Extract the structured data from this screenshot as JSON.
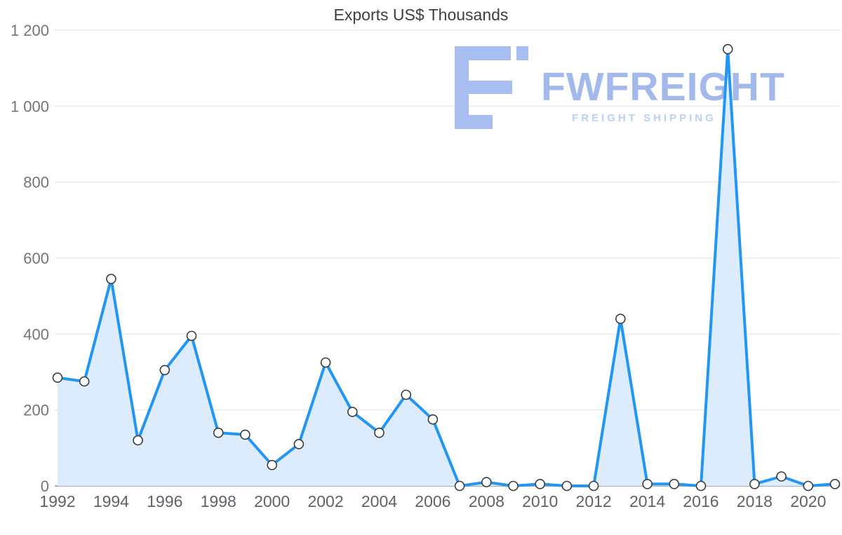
{
  "chart_data": {
    "type": "area",
    "title": "Exports US$ Thousands",
    "xlabel": "",
    "ylabel": "",
    "x": [
      1992,
      1993,
      1994,
      1995,
      1996,
      1997,
      1998,
      1999,
      2000,
      2001,
      2002,
      2003,
      2004,
      2005,
      2006,
      2007,
      2008,
      2009,
      2010,
      2011,
      2012,
      2013,
      2014,
      2015,
      2016,
      2017,
      2018,
      2019,
      2020,
      2021
    ],
    "values": [
      285,
      275,
      545,
      120,
      305,
      395,
      140,
      135,
      55,
      110,
      325,
      195,
      140,
      240,
      175,
      0,
      10,
      0,
      5,
      0,
      0,
      440,
      5,
      5,
      0,
      1150,
      5,
      25,
      0,
      5
    ],
    "series_name": "Exports US$ Thousands",
    "ylim": [
      0,
      1200
    ],
    "grid": true,
    "legend": false,
    "x_tick_step": 2,
    "y_ticks": [
      {
        "value": 0,
        "label": "0"
      },
      {
        "value": 200,
        "label": "200"
      },
      {
        "value": 400,
        "label": "400"
      },
      {
        "value": 600,
        "label": "600"
      },
      {
        "value": 800,
        "label": "800"
      },
      {
        "value": 1000,
        "label": "1 000"
      },
      {
        "value": 1200,
        "label": "1 200"
      }
    ],
    "line_color": "#2196f3",
    "area_color": "#dcecfd",
    "marker_fill": "#ffffff",
    "marker_stroke": "#3b3b3b",
    "grid_color": "#e2e2e2",
    "axis_line_color": "#a8a8a8",
    "tick_label_color": "#757575",
    "x_tick_label_color": "#5f6368",
    "title_color": "#3c4043"
  },
  "watermark": {
    "brand": "FWFREIGHT",
    "subtitle": "FREIGHT SHIPPING",
    "icon_name": "fwfreight-logo-icon",
    "brand_color": "#a3b9ec",
    "subtitle_color": "#bccff4",
    "icon_color": "#a9bef0"
  }
}
